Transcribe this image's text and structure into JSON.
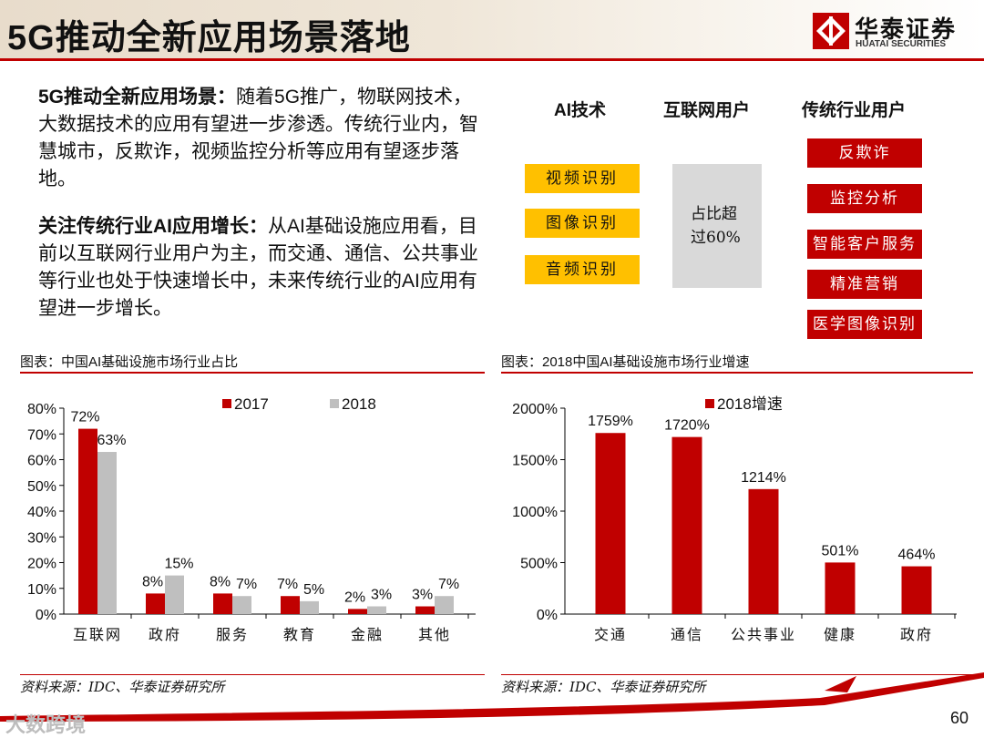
{
  "page": {
    "title": "5G推动全新应用场景落地",
    "page_number": "60",
    "watermark": "大数跨境"
  },
  "logo": {
    "name_cn": "华泰证券",
    "name_en": "HUATAI SECURITIES"
  },
  "text": {
    "p1_bold": "5G推动全新应用场景：",
    "p1_body": "随着5G推广，物联网技术，大数据技术的应用有望进一步渗透。传统行业内，智慧城市，反欺诈，视频监控分析等应用有望逐步落地。",
    "p2_bold": "关注传统行业AI应用增长：",
    "p2_body": "从AI基础设施应用看，目前以互联网行业用户为主，而交通、通信、公共事业等行业也处于快速增长中，未来传统行业的AI应用有望进一步增长。"
  },
  "diagram": {
    "col1_title": "AI技术",
    "col2_title": "互联网用户",
    "col3_title": "传统行业用户",
    "ai_items": [
      "视频识别",
      "图像识别",
      "音频识别"
    ],
    "internet_text_1": "占比超",
    "internet_text_2": "过60%",
    "traditional_items": [
      "反欺诈",
      "监控分析",
      "智能客户服务",
      "精准营销",
      "医学图像识别"
    ]
  },
  "captions": {
    "left": "图表：中国AI基础设施市场行业占比",
    "right": "图表：2018中国AI基础设施市场行业增速",
    "source_left": "资料来源：IDC、华泰证券研究所",
    "source_right": "资料来源：IDC、华泰证券研究所"
  },
  "colors": {
    "red": "#c00000",
    "gray": "#bfbfbf",
    "yellow": "#ffc000",
    "light_gray": "#d9d9d9"
  },
  "chart_data": [
    {
      "type": "bar",
      "title": "中国AI基础设施市场行业占比",
      "categories": [
        "互联网",
        "政府",
        "服务",
        "教育",
        "金融",
        "其他"
      ],
      "series": [
        {
          "name": "2017",
          "values": [
            72,
            8,
            8,
            7,
            2,
            3
          ],
          "labels": [
            "72%",
            "8%",
            "8%",
            "7%",
            "2%",
            "3%"
          ]
        },
        {
          "name": "2018",
          "values": [
            63,
            15,
            7,
            5,
            3,
            7
          ],
          "labels": [
            "63%",
            "15%",
            "7%",
            "5%",
            "3%",
            "7%"
          ]
        }
      ],
      "ylim": [
        0,
        80
      ],
      "yticks": [
        "0%",
        "10%",
        "20%",
        "30%",
        "40%",
        "50%",
        "60%",
        "70%",
        "80%"
      ],
      "legend": "top"
    },
    {
      "type": "bar",
      "title": "2018中国AI基础设施市场行业增速",
      "categories": [
        "交通",
        "通信",
        "公共事业",
        "健康",
        "政府"
      ],
      "series": [
        {
          "name": "2018增速",
          "values": [
            1759,
            1720,
            1214,
            501,
            464
          ],
          "labels": [
            "1759%",
            "1720%",
            "1214%",
            "501%",
            "464%"
          ]
        }
      ],
      "ylim": [
        0,
        2000
      ],
      "yticks": [
        "0%",
        "500%",
        "1000%",
        "1500%",
        "2000%"
      ],
      "legend": "top"
    }
  ]
}
